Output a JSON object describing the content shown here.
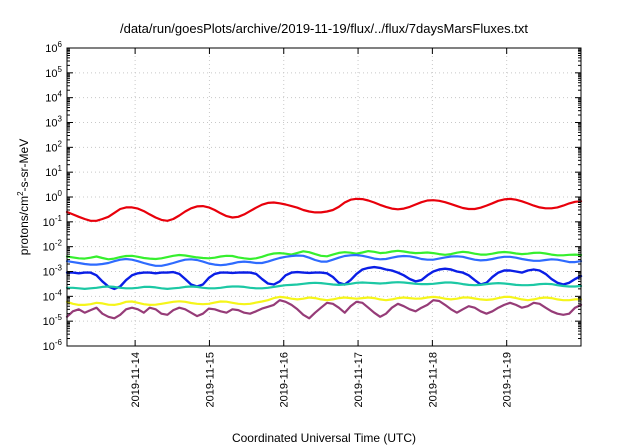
{
  "chart_data": {
    "type": "line",
    "title": "/data/run/goesPlots/archive/2019-11-19/flux/../flux/7daysMarsFluxes.txt",
    "xlabel": "Coordinated Universal Time (UTC)",
    "ylabel": {
      "base": "protons/cm",
      "exp": "2",
      "rest": "-s-sr-MeV"
    },
    "yscale": "log",
    "ylim": [
      1e-06,
      1000000.0
    ],
    "ytick_labels": [
      {
        "base": "10",
        "exp": "-6"
      },
      {
        "base": "10",
        "exp": "-5"
      },
      {
        "base": "10",
        "exp": "-4"
      },
      {
        "base": "10",
        "exp": "-3"
      },
      {
        "base": "10",
        "exp": "-2"
      },
      {
        "base": "10",
        "exp": "-1"
      },
      {
        "base": "10",
        "exp": "0"
      },
      {
        "base": "10",
        "exp": "1"
      },
      {
        "base": "10",
        "exp": "2"
      },
      {
        "base": "10",
        "exp": "3"
      },
      {
        "base": "10",
        "exp": "4"
      },
      {
        "base": "10",
        "exp": "5"
      },
      {
        "base": "10",
        "exp": "6"
      }
    ],
    "xlim": [
      "2019-11-13T02:00",
      "2019-11-20T00:00"
    ],
    "xtick_labels": [
      "2019-11-14",
      "2019-11-15",
      "2019-11-16",
      "2019-11-17",
      "2019-11-18",
      "2019-11-19"
    ],
    "grid": true,
    "series": [
      {
        "color": "#e8000b",
        "width": 2.2,
        "values": [
          0.25,
          0.2,
          0.16,
          0.13,
          0.11,
          0.11,
          0.13,
          0.16,
          0.23,
          0.33,
          0.38,
          0.38,
          0.34,
          0.27,
          0.2,
          0.15,
          0.12,
          0.11,
          0.13,
          0.18,
          0.26,
          0.35,
          0.42,
          0.43,
          0.38,
          0.3,
          0.22,
          0.17,
          0.15,
          0.16,
          0.2,
          0.27,
          0.37,
          0.49,
          0.58,
          0.6,
          0.56,
          0.5,
          0.43,
          0.37,
          0.3,
          0.26,
          0.24,
          0.24,
          0.26,
          0.3,
          0.4,
          0.6,
          0.78,
          0.85,
          0.82,
          0.72,
          0.6,
          0.48,
          0.4,
          0.34,
          0.32,
          0.34,
          0.4,
          0.5,
          0.62,
          0.72,
          0.74,
          0.7,
          0.62,
          0.52,
          0.43,
          0.36,
          0.33,
          0.33,
          0.37,
          0.45,
          0.56,
          0.7,
          0.8,
          0.84,
          0.78,
          0.67,
          0.55,
          0.45,
          0.38,
          0.35,
          0.35,
          0.38,
          0.45,
          0.55,
          0.64,
          0.68
        ]
      },
      {
        "color": "#36ef2e",
        "width": 2.2,
        "values": [
          0.004,
          0.0037,
          0.0034,
          0.0033,
          0.0036,
          0.004,
          0.0035,
          0.0031,
          0.0033,
          0.0038,
          0.0042,
          0.0043,
          0.0039,
          0.0035,
          0.0033,
          0.0032,
          0.0034,
          0.0038,
          0.0043,
          0.0046,
          0.0044,
          0.004,
          0.0037,
          0.0035,
          0.0034,
          0.0036,
          0.004,
          0.0043,
          0.0042,
          0.0037,
          0.0034,
          0.0032,
          0.0034,
          0.0039,
          0.0047,
          0.0053,
          0.0055,
          0.0052,
          0.0048,
          0.0056,
          0.0065,
          0.006,
          0.005,
          0.0043,
          0.0041,
          0.0048,
          0.0056,
          0.006,
          0.0057,
          0.0052,
          0.0058,
          0.0066,
          0.0062,
          0.0055,
          0.0057,
          0.0064,
          0.0068,
          0.0064,
          0.0058,
          0.0055,
          0.0056,
          0.0058,
          0.0055,
          0.005,
          0.0047,
          0.005,
          0.0057,
          0.0062,
          0.0059,
          0.0052,
          0.0048,
          0.0048,
          0.0052,
          0.0058,
          0.0061,
          0.0058,
          0.0053,
          0.005,
          0.0052,
          0.0056,
          0.0057,
          0.0053,
          0.0048,
          0.0045,
          0.0045,
          0.0047,
          0.0048,
          0.0046
        ]
      },
      {
        "color": "#2f6bff",
        "width": 2.2,
        "values": [
          0.0026,
          0.0024,
          0.0022,
          0.002,
          0.0019,
          0.0019,
          0.002,
          0.0022,
          0.0026,
          0.003,
          0.0032,
          0.003,
          0.0026,
          0.0022,
          0.0019,
          0.0017,
          0.0017,
          0.0019,
          0.0022,
          0.0026,
          0.003,
          0.0031,
          0.0029,
          0.0025,
          0.0021,
          0.0019,
          0.0018,
          0.0019,
          0.0021,
          0.0024,
          0.0025,
          0.0024,
          0.0022,
          0.0022,
          0.0025,
          0.003,
          0.0035,
          0.0039,
          0.0042,
          0.0044,
          0.0043,
          0.0036,
          0.0029,
          0.0025,
          0.0025,
          0.003,
          0.0036,
          0.0042,
          0.0045,
          0.0046,
          0.0043,
          0.0038,
          0.0033,
          0.0031,
          0.0032,
          0.0036,
          0.004,
          0.0042,
          0.0041,
          0.0037,
          0.0032,
          0.003,
          0.003,
          0.0033,
          0.0037,
          0.004,
          0.0041,
          0.0039,
          0.0034,
          0.003,
          0.0028,
          0.0029,
          0.0032,
          0.0036,
          0.0039,
          0.0039,
          0.0036,
          0.0032,
          0.0029,
          0.0027,
          0.0027,
          0.0029,
          0.0031,
          0.003,
          0.0027,
          0.0024,
          0.0024,
          0.0026
        ]
      },
      {
        "color": "#0a1ee6",
        "width": 2.4,
        "values": [
          0.0009,
          0.0009,
          0.00085,
          0.0009,
          0.0009,
          0.0007,
          0.0004,
          0.00025,
          0.0002,
          0.00025,
          0.00045,
          0.0007,
          0.00085,
          0.0009,
          0.0009,
          0.00085,
          0.0009,
          0.0009,
          0.00095,
          0.0008,
          0.0005,
          0.0003,
          0.00025,
          0.0003,
          0.00055,
          0.0008,
          0.0009,
          0.0009,
          0.00088,
          0.0009,
          0.00092,
          0.0009,
          0.0008,
          0.0005,
          0.00033,
          0.0003,
          0.0004,
          0.0007,
          0.0009,
          0.00095,
          0.0009,
          0.00088,
          0.0009,
          0.0009,
          0.00085,
          0.0006,
          0.00035,
          0.0003,
          0.00045,
          0.0008,
          0.0012,
          0.0014,
          0.0015,
          0.0014,
          0.0012,
          0.0011,
          0.0009,
          0.0007,
          0.0005,
          0.0004,
          0.00045,
          0.0007,
          0.001,
          0.0012,
          0.0013,
          0.0012,
          0.001,
          0.0009,
          0.0007,
          0.00045,
          0.0003,
          0.00035,
          0.0006,
          0.0009,
          0.0011,
          0.0011,
          0.001,
          0.0009,
          0.0011,
          0.0012,
          0.0011,
          0.0008,
          0.0005,
          0.00035,
          0.0003,
          0.00035,
          0.0005,
          0.00065
        ]
      },
      {
        "color": "#1cc8a4",
        "width": 2.2,
        "values": [
          0.00022,
          0.00022,
          0.00021,
          0.0002,
          0.00021,
          0.00022,
          0.00024,
          0.00025,
          0.00024,
          0.00022,
          0.00021,
          0.00021,
          0.00022,
          0.00024,
          0.00024,
          0.00023,
          0.00021,
          0.0002,
          0.00021,
          0.00022,
          0.00024,
          0.00025,
          0.00024,
          0.00022,
          0.00021,
          0.00021,
          0.00022,
          0.00024,
          0.00025,
          0.00025,
          0.00024,
          0.00022,
          0.00021,
          0.00021,
          0.00022,
          0.00024,
          0.00026,
          0.00028,
          0.00029,
          0.0003,
          0.00032,
          0.00034,
          0.00035,
          0.00034,
          0.00032,
          0.0003,
          0.00029,
          0.0003,
          0.00032,
          0.00035,
          0.00036,
          0.00035,
          0.00034,
          0.00033,
          0.00034,
          0.00036,
          0.00037,
          0.00036,
          0.00034,
          0.00032,
          0.00031,
          0.00031,
          0.00032,
          0.00034,
          0.00036,
          0.00036,
          0.00034,
          0.00031,
          0.00029,
          0.00028,
          0.00029,
          0.00031,
          0.00033,
          0.00034,
          0.00033,
          0.00031,
          0.00029,
          0.00028,
          0.00028,
          0.00029,
          0.00031,
          0.00032,
          0.00031,
          0.00028,
          0.00026,
          0.00025,
          0.00025,
          0.00026
        ]
      },
      {
        "color": "#f5f51a",
        "width": 2.2,
        "values": [
          6e-05,
          5e-05,
          4.5e-05,
          4.5e-05,
          4.8e-05,
          5.5e-05,
          5.2e-05,
          4.6e-05,
          4.5e-05,
          5e-05,
          6e-05,
          6.2e-05,
          5.5e-05,
          4.8e-05,
          4.5e-05,
          4.6e-05,
          5e-05,
          5.5e-05,
          6e-05,
          6.3e-05,
          6e-05,
          5.4e-05,
          5e-05,
          4.8e-05,
          5e-05,
          5.6e-05,
          6.2e-05,
          6.1e-05,
          5.5e-05,
          5e-05,
          4.8e-05,
          5e-05,
          5.6e-05,
          6.2e-05,
          7e-05,
          8.5e-05,
          9.5e-05,
          9e-05,
          8e-05,
          7.5e-05,
          8e-05,
          9e-05,
          8.5e-05,
          7.5e-05,
          7e-05,
          7.5e-05,
          8.5e-05,
          9e-05,
          8.5e-05,
          8e-05,
          8.5e-05,
          9e-05,
          8.5e-05,
          7.5e-05,
          7e-05,
          7.5e-05,
          8.5e-05,
          9e-05,
          8.5e-05,
          8e-05,
          8.2e-05,
          9e-05,
          9.5e-05,
          9e-05,
          8e-05,
          7.5e-05,
          8e-05,
          9e-05,
          9e-05,
          8.2e-05,
          7.5e-05,
          7.2e-05,
          7.5e-05,
          8.5e-05,
          9.5e-05,
          9.5e-05,
          8.5e-05,
          7.5e-05,
          7e-05,
          7.5e-05,
          8.5e-05,
          9e-05,
          8.5e-05,
          7.5e-05,
          7e-05,
          7e-05,
          7.5e-05,
          7.5e-05
        ]
      },
      {
        "color": "#963c78",
        "width": 2.2,
        "values": [
          1.5e-05,
          2.5e-05,
          3e-05,
          2.2e-05,
          2.8e-05,
          3.5e-05,
          2e-05,
          1.5e-05,
          1.3e-05,
          1.8e-05,
          3e-05,
          3.5e-05,
          3e-05,
          2.2e-05,
          3.5e-05,
          3e-05,
          2e-05,
          1.8e-05,
          2.8e-05,
          3.5e-05,
          3e-05,
          2.2e-05,
          1.6e-05,
          2e-05,
          3.2e-05,
          3e-05,
          2.5e-05,
          2.2e-05,
          3e-05,
          2.8e-05,
          2.2e-05,
          2e-05,
          2.5e-05,
          3.2e-05,
          3.8e-05,
          4.5e-05,
          7e-05,
          6e-05,
          4.5e-05,
          3e-05,
          1.8e-05,
          1.3e-05,
          2.2e-05,
          3.5e-05,
          5.5e-05,
          5e-05,
          3.5e-05,
          2.2e-05,
          4e-05,
          6e-05,
          5.5e-05,
          3.5e-05,
          2.2e-05,
          1.5e-05,
          2e-05,
          3.5e-05,
          5e-05,
          4e-05,
          3e-05,
          2.5e-05,
          3.5e-05,
          4.5e-05,
          7e-05,
          6.5e-05,
          4.5e-05,
          3e-05,
          2.2e-05,
          3e-05,
          4e-05,
          3.5e-05,
          2.5e-05,
          2e-05,
          2.5e-05,
          3.5e-05,
          4.5e-05,
          5.5e-05,
          4.5e-05,
          3.5e-05,
          4e-05,
          5.5e-05,
          5e-05,
          3.5e-05,
          2.5e-05,
          2e-05,
          1.8e-05,
          2e-05,
          3.5e-05,
          4.5e-05
        ]
      }
    ]
  }
}
